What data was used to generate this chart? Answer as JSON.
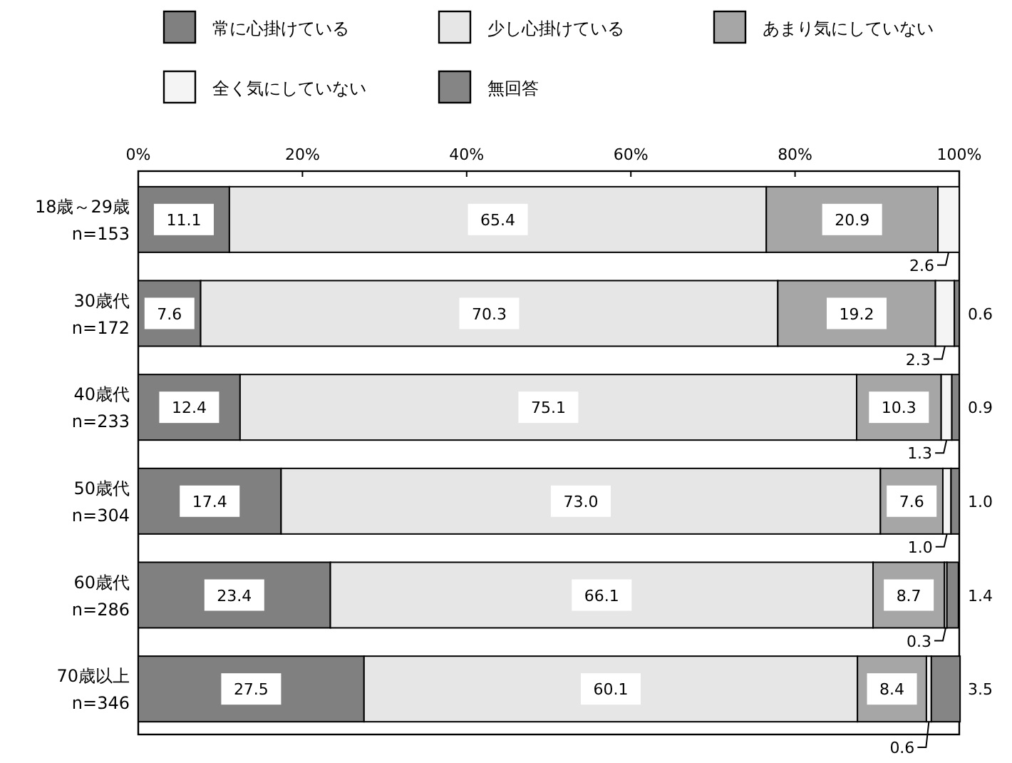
{
  "chart_data": {
    "type": "bar",
    "orientation": "horizontal",
    "stacked": true,
    "legend": "top",
    "categories": [
      "18歳～29歳\nn=153",
      "30歳代\nn=172",
      "40歳代\nn=233",
      "50歳代\nn=304",
      "60歳代\nn=286",
      "70歳以上\nn=346"
    ],
    "xlim": [
      0,
      100
    ],
    "xticks": [
      {
        "value": 0,
        "label": "0%"
      },
      {
        "value": 20,
        "label": "20%"
      },
      {
        "value": 40,
        "label": "40%"
      },
      {
        "value": 60,
        "label": "60%"
      },
      {
        "value": 80,
        "label": "80%"
      },
      {
        "value": 100,
        "label": "100%"
      }
    ],
    "series": [
      {
        "name": "常に心掛けている",
        "color": "#808080",
        "values": [
          11.1,
          7.6,
          12.4,
          17.4,
          23.4,
          27.5
        ],
        "value_labels": [
          "11.1",
          "7.6",
          "12.4",
          "17.4",
          "23.4",
          "27.5"
        ]
      },
      {
        "name": "少し心掛けている",
        "color": "#e6e6e6",
        "values": [
          65.4,
          70.3,
          75.1,
          73.0,
          66.1,
          60.1
        ],
        "value_labels": [
          "65.4",
          "70.3",
          "75.1",
          "73.0",
          "66.1",
          "60.1"
        ]
      },
      {
        "name": "あまり気にしていない",
        "color": "#a6a6a6",
        "values": [
          20.9,
          19.2,
          10.3,
          7.6,
          8.7,
          8.4
        ],
        "value_labels": [
          "20.9",
          "19.2",
          "10.3",
          "7.6",
          "8.7",
          "8.4"
        ]
      },
      {
        "name": "全く気にしていない",
        "color": "#f4f4f4",
        "values": [
          2.6,
          2.3,
          1.3,
          1.0,
          0.3,
          0.6
        ],
        "value_labels": [
          "2.6",
          "2.3",
          "1.3",
          "1.0",
          "0.3",
          "0.6"
        ]
      },
      {
        "name": "無回答",
        "color": "#858585",
        "values": [
          0,
          0.6,
          0.9,
          1.0,
          1.4,
          3.5
        ],
        "value_labels": [
          null,
          "0.6",
          "0.9",
          "1.0",
          "1.4",
          "3.5"
        ]
      }
    ]
  }
}
